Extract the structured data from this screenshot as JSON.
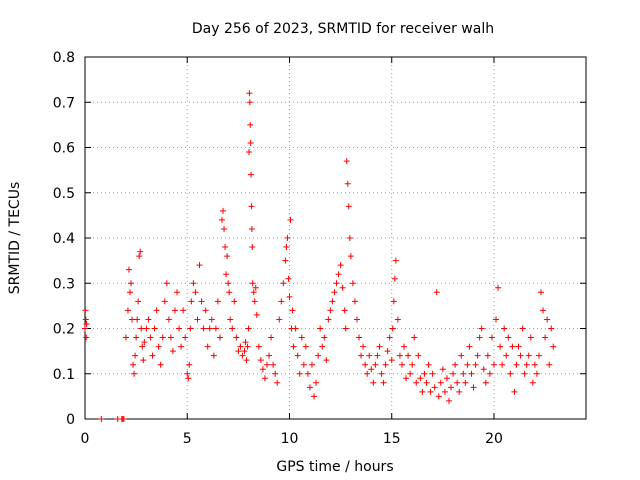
{
  "chart_data": {
    "type": "scatter",
    "title": "Day 256 of 2023, SRMTID for receiver walh",
    "xlabel": "GPS time / hours",
    "ylabel": "SRMTID / TECUs",
    "xlim": [
      0,
      24.5
    ],
    "ylim": [
      0,
      0.8
    ],
    "xticks": [
      0,
      5,
      10,
      15,
      20
    ],
    "yticks": [
      0,
      0.1,
      0.2,
      0.3,
      0.4,
      0.5,
      0.6,
      0.7,
      0.8
    ],
    "xtick_labels": [
      "0",
      "5",
      "10",
      "15",
      "20"
    ],
    "ytick_labels": [
      "0",
      "0.1",
      "0.2",
      "0.3",
      "0.4",
      "0.5",
      "0.6",
      "0.7",
      "0.8"
    ],
    "grid": true,
    "marker": "plus",
    "color": "#ff0000",
    "series": [
      {
        "name": "SRMTID",
        "x": [
          0.0,
          0.02,
          0.04,
          0.06,
          0.08,
          0.8,
          1.6,
          1.8,
          1.85,
          1.9,
          2.0,
          2.1,
          2.15,
          2.2,
          2.25,
          2.3,
          2.35,
          2.4,
          2.45,
          2.5,
          2.55,
          2.6,
          2.65,
          2.7,
          2.75,
          2.8,
          2.85,
          2.9,
          3.0,
          3.1,
          3.2,
          3.3,
          3.4,
          3.5,
          3.6,
          3.7,
          3.8,
          3.9,
          4.0,
          4.1,
          4.2,
          4.3,
          4.4,
          4.5,
          4.6,
          4.7,
          4.8,
          4.9,
          5.0,
          5.05,
          5.1,
          5.15,
          5.2,
          5.3,
          5.4,
          5.5,
          5.6,
          5.7,
          5.8,
          5.9,
          6.0,
          6.1,
          6.2,
          6.3,
          6.4,
          6.5,
          6.6,
          6.7,
          6.75,
          6.8,
          6.85,
          6.9,
          6.95,
          7.0,
          7.05,
          7.1,
          7.2,
          7.3,
          7.4,
          7.5,
          7.6,
          7.7,
          7.8,
          7.85,
          7.9,
          7.95,
          8.0,
          8.02,
          8.04,
          8.06,
          8.08,
          8.1,
          8.12,
          8.14,
          8.16,
          8.18,
          8.2,
          8.25,
          8.3,
          8.35,
          8.4,
          8.5,
          8.6,
          8.7,
          8.8,
          8.9,
          9.0,
          9.1,
          9.2,
          9.3,
          9.4,
          9.5,
          9.6,
          9.7,
          9.8,
          9.85,
          9.9,
          9.95,
          10.0,
          10.05,
          10.1,
          10.15,
          10.2,
          10.3,
          10.4,
          10.5,
          10.6,
          10.7,
          10.8,
          10.9,
          11.0,
          11.1,
          11.2,
          11.3,
          11.4,
          11.5,
          11.6,
          11.7,
          11.8,
          11.9,
          12.0,
          12.1,
          12.2,
          12.3,
          12.4,
          12.5,
          12.6,
          12.7,
          12.75,
          12.8,
          12.85,
          12.9,
          12.95,
          13.0,
          13.1,
          13.2,
          13.3,
          13.4,
          13.5,
          13.6,
          13.7,
          13.8,
          13.9,
          14.0,
          14.1,
          14.2,
          14.3,
          14.4,
          14.5,
          14.6,
          14.7,
          14.8,
          14.9,
          15.0,
          15.05,
          15.1,
          15.15,
          15.2,
          15.3,
          15.4,
          15.5,
          15.6,
          15.7,
          15.8,
          15.9,
          16.0,
          16.1,
          16.2,
          16.3,
          16.4,
          16.5,
          16.6,
          16.7,
          16.8,
          16.9,
          17.0,
          17.1,
          17.2,
          17.3,
          17.4,
          17.5,
          17.6,
          17.7,
          17.8,
          17.9,
          18.0,
          18.1,
          18.2,
          18.3,
          18.4,
          18.5,
          18.6,
          18.7,
          18.8,
          18.9,
          19.0,
          19.1,
          19.2,
          19.3,
          19.4,
          19.5,
          19.6,
          19.7,
          19.8,
          19.9,
          20.0,
          20.1,
          20.2,
          20.3,
          20.4,
          20.5,
          20.6,
          20.7,
          20.8,
          20.9,
          21.0,
          21.1,
          21.2,
          21.3,
          21.4,
          21.5,
          21.6,
          21.7,
          21.8,
          21.9,
          22.0,
          22.1,
          22.2,
          22.3,
          22.4,
          22.5,
          22.6,
          22.7,
          22.8,
          22.9
        ],
        "y": [
          0.2,
          0.24,
          0.22,
          0.18,
          0.21,
          0.0,
          0.0,
          0.0,
          0.0,
          0.0,
          0.18,
          0.24,
          0.33,
          0.28,
          0.3,
          0.22,
          0.12,
          0.1,
          0.14,
          0.18,
          0.22,
          0.26,
          0.36,
          0.37,
          0.2,
          0.16,
          0.13,
          0.17,
          0.2,
          0.22,
          0.18,
          0.14,
          0.2,
          0.24,
          0.16,
          0.12,
          0.18,
          0.26,
          0.3,
          0.22,
          0.18,
          0.15,
          0.24,
          0.28,
          0.2,
          0.16,
          0.24,
          0.18,
          0.1,
          0.09,
          0.12,
          0.2,
          0.26,
          0.3,
          0.28,
          0.22,
          0.34,
          0.26,
          0.2,
          0.24,
          0.16,
          0.2,
          0.22,
          0.14,
          0.2,
          0.26,
          0.18,
          0.44,
          0.46,
          0.42,
          0.38,
          0.32,
          0.36,
          0.3,
          0.28,
          0.22,
          0.2,
          0.26,
          0.18,
          0.15,
          0.16,
          0.14,
          0.15,
          0.17,
          0.13,
          0.16,
          0.2,
          0.59,
          0.72,
          0.7,
          0.65,
          0.61,
          0.54,
          0.47,
          0.42,
          0.38,
          0.3,
          0.28,
          0.26,
          0.29,
          0.23,
          0.16,
          0.13,
          0.11,
          0.09,
          0.12,
          0.14,
          0.18,
          0.12,
          0.1,
          0.08,
          0.22,
          0.26,
          0.3,
          0.35,
          0.38,
          0.4,
          0.31,
          0.27,
          0.44,
          0.2,
          0.24,
          0.16,
          0.2,
          0.14,
          0.1,
          0.18,
          0.12,
          0.16,
          0.1,
          0.07,
          0.12,
          0.05,
          0.08,
          0.14,
          0.2,
          0.16,
          0.18,
          0.13,
          0.22,
          0.24,
          0.26,
          0.28,
          0.3,
          0.32,
          0.34,
          0.29,
          0.24,
          0.2,
          0.57,
          0.52,
          0.47,
          0.4,
          0.36,
          0.3,
          0.26,
          0.22,
          0.18,
          0.14,
          0.16,
          0.12,
          0.1,
          0.14,
          0.11,
          0.08,
          0.12,
          0.14,
          0.16,
          0.1,
          0.08,
          0.12,
          0.15,
          0.18,
          0.13,
          0.2,
          0.26,
          0.31,
          0.35,
          0.22,
          0.14,
          0.12,
          0.16,
          0.09,
          0.14,
          0.1,
          0.12,
          0.18,
          0.08,
          0.14,
          0.09,
          0.06,
          0.1,
          0.08,
          0.12,
          0.06,
          0.1,
          0.07,
          0.28,
          0.05,
          0.08,
          0.11,
          0.06,
          0.09,
          0.04,
          0.07,
          0.1,
          0.12,
          0.08,
          0.06,
          0.14,
          0.1,
          0.08,
          0.12,
          0.16,
          0.1,
          0.07,
          0.12,
          0.14,
          0.18,
          0.2,
          0.11,
          0.08,
          0.14,
          0.1,
          0.18,
          0.12,
          0.22,
          0.29,
          0.16,
          0.12,
          0.2,
          0.14,
          0.18,
          0.1,
          0.16,
          0.06,
          0.12,
          0.16,
          0.14,
          0.2,
          0.1,
          0.12,
          0.14,
          0.18,
          0.08,
          0.12,
          0.1,
          0.14,
          0.28,
          0.24,
          0.18,
          0.22,
          0.12,
          0.2,
          0.16
        ]
      }
    ]
  }
}
